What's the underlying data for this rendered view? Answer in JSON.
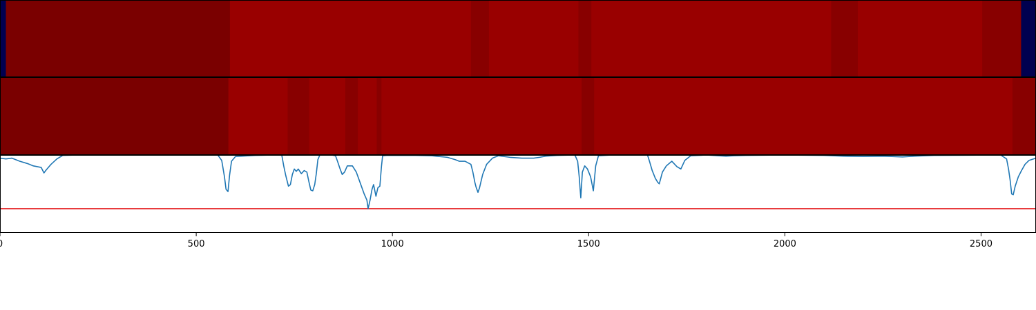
{
  "chart_data": {
    "type": "heatmap",
    "xlim": [
      0,
      2640
    ],
    "x_ticks": [
      0,
      500,
      1000,
      1500,
      2000,
      2500
    ],
    "x_tick_labels": [
      "0",
      "500",
      "1000",
      "1500",
      "2000",
      "2500"
    ],
    "colors": {
      "very_dark_red": "#7a0000",
      "dark_red": "#880000",
      "red": "#990000",
      "navy": "#000050",
      "line": "#1f77b4",
      "threshold": "#e41a1c"
    },
    "heatmap_rows": [
      {
        "segments": [
          {
            "start": 0,
            "end": 15,
            "color": "navy"
          },
          {
            "start": 15,
            "end": 586,
            "color": "very_dark_red"
          },
          {
            "start": 586,
            "end": 1200,
            "color": "red"
          },
          {
            "start": 1200,
            "end": 1246,
            "color": "dark_red"
          },
          {
            "start": 1246,
            "end": 1474,
            "color": "red"
          },
          {
            "start": 1474,
            "end": 1507,
            "color": "dark_red"
          },
          {
            "start": 1507,
            "end": 2118,
            "color": "red"
          },
          {
            "start": 2118,
            "end": 2186,
            "color": "dark_red"
          },
          {
            "start": 2186,
            "end": 2503,
            "color": "red"
          },
          {
            "start": 2503,
            "end": 2602,
            "color": "dark_red"
          },
          {
            "start": 2602,
            "end": 2640,
            "color": "navy"
          }
        ]
      },
      {
        "segments": [
          {
            "start": 0,
            "end": 582,
            "color": "very_dark_red"
          },
          {
            "start": 582,
            "end": 733,
            "color": "red"
          },
          {
            "start": 733,
            "end": 788,
            "color": "dark_red"
          },
          {
            "start": 788,
            "end": 880,
            "color": "red"
          },
          {
            "start": 880,
            "end": 912,
            "color": "dark_red"
          },
          {
            "start": 912,
            "end": 960,
            "color": "red"
          },
          {
            "start": 960,
            "end": 972,
            "color": "dark_red"
          },
          {
            "start": 972,
            "end": 1482,
            "color": "red"
          },
          {
            "start": 1482,
            "end": 1514,
            "color": "dark_red"
          },
          {
            "start": 1514,
            "end": 2580,
            "color": "red"
          },
          {
            "start": 2580,
            "end": 2640,
            "color": "dark_red"
          }
        ]
      }
    ],
    "signal": {
      "ylim": [
        0,
        1
      ],
      "threshold": 0.31,
      "points": [
        [
          0,
          0.96
        ],
        [
          15,
          0.95
        ],
        [
          30,
          0.96
        ],
        [
          50,
          0.92
        ],
        [
          70,
          0.89
        ],
        [
          85,
          0.86
        ],
        [
          95,
          0.85
        ],
        [
          105,
          0.84
        ],
        [
          112,
          0.77
        ],
        [
          118,
          0.81
        ],
        [
          130,
          0.88
        ],
        [
          145,
          0.95
        ],
        [
          160,
          0.995
        ],
        [
          200,
          1.0
        ],
        [
          400,
          1.0
        ],
        [
          555,
          1.0
        ],
        [
          565,
          0.93
        ],
        [
          572,
          0.72
        ],
        [
          576,
          0.56
        ],
        [
          581,
          0.53
        ],
        [
          585,
          0.74
        ],
        [
          590,
          0.92
        ],
        [
          600,
          0.98
        ],
        [
          650,
          0.995
        ],
        [
          700,
          1.0
        ],
        [
          718,
          1.0
        ],
        [
          723,
          0.86
        ],
        [
          728,
          0.74
        ],
        [
          735,
          0.6
        ],
        [
          740,
          0.62
        ],
        [
          745,
          0.75
        ],
        [
          750,
          0.82
        ],
        [
          755,
          0.79
        ],
        [
          760,
          0.82
        ],
        [
          768,
          0.76
        ],
        [
          775,
          0.8
        ],
        [
          782,
          0.78
        ],
        [
          787,
          0.66
        ],
        [
          792,
          0.55
        ],
        [
          797,
          0.54
        ],
        [
          802,
          0.62
        ],
        [
          806,
          0.76
        ],
        [
          810,
          0.94
        ],
        [
          815,
          1.0
        ],
        [
          845,
          1.0
        ],
        [
          855,
          0.99
        ],
        [
          860,
          0.92
        ],
        [
          866,
          0.83
        ],
        [
          872,
          0.75
        ],
        [
          878,
          0.78
        ],
        [
          885,
          0.86
        ],
        [
          898,
          0.86
        ],
        [
          908,
          0.78
        ],
        [
          918,
          0.64
        ],
        [
          928,
          0.5
        ],
        [
          935,
          0.42
        ],
        [
          938,
          0.31
        ],
        [
          943,
          0.42
        ],
        [
          948,
          0.56
        ],
        [
          952,
          0.62
        ],
        [
          958,
          0.47
        ],
        [
          963,
          0.58
        ],
        [
          968,
          0.6
        ],
        [
          972,
          0.85
        ],
        [
          975,
          0.99
        ],
        [
          985,
          0.995
        ],
        [
          1020,
          0.995
        ],
        [
          1060,
          0.995
        ],
        [
          1100,
          0.99
        ],
        [
          1140,
          0.97
        ],
        [
          1160,
          0.94
        ],
        [
          1170,
          0.92
        ],
        [
          1185,
          0.92
        ],
        [
          1200,
          0.88
        ],
        [
          1205,
          0.78
        ],
        [
          1210,
          0.65
        ],
        [
          1213,
          0.59
        ],
        [
          1218,
          0.52
        ],
        [
          1222,
          0.58
        ],
        [
          1230,
          0.75
        ],
        [
          1240,
          0.88
        ],
        [
          1255,
          0.96
        ],
        [
          1270,
          0.99
        ],
        [
          1300,
          0.97
        ],
        [
          1330,
          0.96
        ],
        [
          1360,
          0.96
        ],
        [
          1375,
          0.97
        ],
        [
          1390,
          0.985
        ],
        [
          1420,
          0.995
        ],
        [
          1465,
          1.0
        ],
        [
          1472,
          0.92
        ],
        [
          1476,
          0.72
        ],
        [
          1480,
          0.45
        ],
        [
          1484,
          0.78
        ],
        [
          1490,
          0.86
        ],
        [
          1497,
          0.82
        ],
        [
          1505,
          0.72
        ],
        [
          1512,
          0.54
        ],
        [
          1518,
          0.86
        ],
        [
          1525,
          0.99
        ],
        [
          1560,
          1.0
        ],
        [
          1650,
          1.0
        ],
        [
          1655,
          0.92
        ],
        [
          1662,
          0.8
        ],
        [
          1670,
          0.7
        ],
        [
          1676,
          0.65
        ],
        [
          1680,
          0.63
        ],
        [
          1688,
          0.78
        ],
        [
          1698,
          0.86
        ],
        [
          1712,
          0.92
        ],
        [
          1725,
          0.85
        ],
        [
          1735,
          0.82
        ],
        [
          1745,
          0.93
        ],
        [
          1760,
          0.99
        ],
        [
          1800,
          1.0
        ],
        [
          1830,
          0.99
        ],
        [
          1850,
          0.985
        ],
        [
          1870,
          0.99
        ],
        [
          1900,
          0.995
        ],
        [
          2000,
          1.0
        ],
        [
          2100,
          0.995
        ],
        [
          2150,
          0.985
        ],
        [
          2200,
          0.98
        ],
        [
          2250,
          0.985
        ],
        [
          2300,
          0.975
        ],
        [
          2330,
          0.985
        ],
        [
          2380,
          0.995
        ],
        [
          2550,
          1.0
        ],
        [
          2565,
          0.95
        ],
        [
          2570,
          0.82
        ],
        [
          2574,
          0.68
        ],
        [
          2578,
          0.5
        ],
        [
          2582,
          0.49
        ],
        [
          2587,
          0.6
        ],
        [
          2595,
          0.72
        ],
        [
          2603,
          0.8
        ],
        [
          2612,
          0.88
        ],
        [
          2622,
          0.93
        ],
        [
          2640,
          0.96
        ]
      ]
    }
  }
}
